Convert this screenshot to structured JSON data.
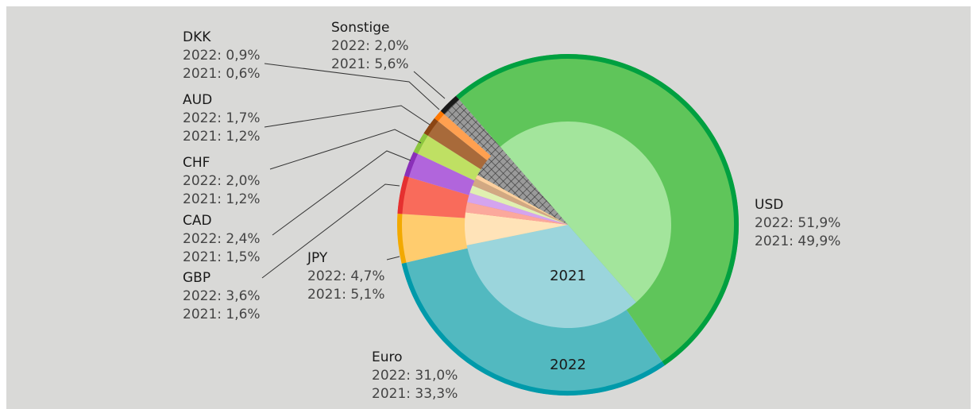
{
  "chart_data": {
    "type": "nested_pie",
    "categories": [
      "USD",
      "Euro",
      "JPY",
      "GBP",
      "CAD",
      "CHF",
      "AUD",
      "DKK",
      "Sonstige"
    ],
    "hatched": "Sonstige",
    "series": [
      {
        "name": "2022",
        "ring": "outer",
        "values": [
          51.9,
          31.0,
          4.7,
          3.6,
          2.4,
          2.0,
          1.7,
          0.9,
          2.0
        ],
        "value_labels": [
          "2022: 51,9%",
          "2022: 31,0%",
          "2022: 4,7%",
          "2022: 3,6%",
          "2022: 2,4%",
          "2022: 2,0%",
          "2022: 1,7%",
          "2022: 0,9%",
          "2022: 2,0%"
        ],
        "colors": [
          "#5fc55a",
          "#52b9c0",
          "#ffcc6e",
          "#f96b5b",
          "#b165dc",
          "#bfe063",
          "#a86a3a",
          "#ffa050",
          "#8c8c8c"
        ],
        "edge_colors": [
          "#00a040",
          "#009aaa",
          "#f2a900",
          "#e53030",
          "#8a30b8",
          "#8cc63f",
          "#8b4513",
          "#ff7700",
          "#1a1a1a"
        ]
      },
      {
        "name": "2021",
        "ring": "inner",
        "values": [
          49.9,
          33.3,
          5.1,
          1.6,
          1.5,
          1.2,
          1.2,
          0.6,
          5.6
        ],
        "value_labels": [
          "2021: 49,9%",
          "2021: 33,3%",
          "2021: 5,1%",
          "2021: 1,6%",
          "2021: 1,5%",
          "2021: 1,2%",
          "2021: 1,2%",
          "2021: 0,6%",
          "2021: 5,6%"
        ],
        "colors": [
          "#a3e59c",
          "#9bd5dc",
          "#ffe3b8",
          "#fba89c",
          "#d4a4ee",
          "#e0f0b0",
          "#d2a882",
          "#ffd0a0",
          "#8c8c8c"
        ]
      }
    ]
  }
}
